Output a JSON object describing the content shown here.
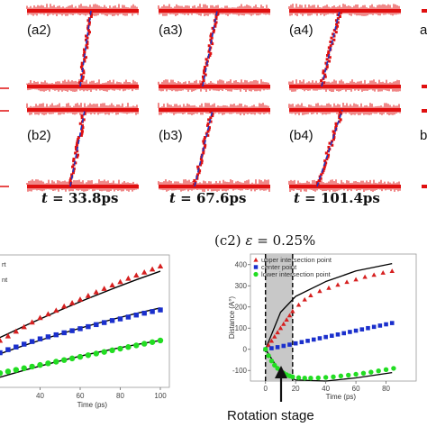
{
  "snapshots": {
    "row_a_labels": [
      "(a2)",
      "(a3)",
      "(a4)"
    ],
    "row_b_labels": [
      "(b2)",
      "(b3)",
      "(b4)"
    ],
    "time_labels": [
      {
        "symbol": "t",
        "eq": " = ",
        "value": "33.8ps"
      },
      {
        "symbol": "t",
        "eq": " = ",
        "value": "67.6ps"
      },
      {
        "symbol": "t",
        "eq": " = ",
        "value": "101.4ps"
      }
    ],
    "edge_fragments": [
      "a",
      "b"
    ],
    "colors": {
      "atoms": "#e01010",
      "fit_line": "#2233bb"
    }
  },
  "chart_data": [
    {
      "type": "scatter",
      "title": "",
      "xlabel": "Time (ps)",
      "ylabel": "",
      "xlim": [
        20,
        100
      ],
      "ylim": [
        -150,
        500
      ],
      "xticks": [
        40,
        60,
        80,
        100
      ],
      "legend_fragments": [
        "rt",
        "nt"
      ],
      "series": [
        {
          "marker": "triangle",
          "color": "#d62020",
          "x": [
            20,
            24,
            28,
            32,
            36,
            40,
            44,
            48,
            52,
            56,
            60,
            64,
            68,
            72,
            76,
            80,
            84,
            88,
            92,
            96,
            100
          ],
          "y": [
            80,
            102,
            125,
            147,
            170,
            192,
            210,
            228,
            248,
            265,
            282,
            300,
            318,
            335,
            352,
            368,
            385,
            400,
            415,
            430,
            445
          ],
          "fit": [
            95,
            420
          ]
        },
        {
          "marker": "square",
          "color": "#1a2fcc",
          "x": [
            20,
            24,
            28,
            32,
            36,
            40,
            44,
            48,
            52,
            56,
            60,
            64,
            68,
            72,
            76,
            80,
            84,
            88,
            92,
            96,
            100
          ],
          "y": [
            20,
            35,
            48,
            62,
            75,
            88,
            98,
            108,
            118,
            128,
            138,
            148,
            158,
            168,
            178,
            186,
            195,
            205,
            214,
            222,
            230
          ],
          "fit": [
            15,
            240
          ]
        },
        {
          "marker": "circle",
          "color": "#22dd22",
          "x": [
            20,
            24,
            28,
            32,
            36,
            40,
            44,
            48,
            52,
            56,
            60,
            64,
            68,
            72,
            76,
            80,
            84,
            88,
            92,
            96,
            100
          ],
          "y": [
            -80,
            -72,
            -64,
            -56,
            -48,
            -40,
            -32,
            -24,
            -16,
            -8,
            0,
            8,
            16,
            24,
            32,
            40,
            48,
            56,
            64,
            72,
            80
          ],
          "fit": [
            -100,
            80
          ]
        }
      ]
    },
    {
      "type": "scatter",
      "title_prefix": "(c2) ",
      "title_symbol": "ε",
      "title_value": " = 0.25%",
      "xlabel": "Time (ps)",
      "ylabel": "Distance (A°)",
      "xlim": [
        -10,
        100
      ],
      "ylim": [
        -150,
        450
      ],
      "xticks": [
        0,
        20,
        40,
        60,
        80
      ],
      "yticks": [
        -100,
        0,
        100,
        200,
        300,
        400
      ],
      "shaded_region": [
        0,
        18
      ],
      "legend": [
        "upper intersection point",
        "center point",
        "lower intersection point"
      ],
      "annotation": "Rotation stage",
      "series": [
        {
          "name": "upper intersection point",
          "marker": "triangle",
          "color": "#d62020",
          "x": [
            0,
            2,
            4,
            6,
            8,
            10,
            12,
            14,
            16,
            18,
            22,
            26,
            30,
            36,
            42,
            48,
            54,
            60,
            66,
            72,
            78,
            84
          ],
          "y": [
            0,
            20,
            40,
            60,
            80,
            100,
            120,
            140,
            160,
            180,
            210,
            235,
            255,
            275,
            290,
            305,
            318,
            330,
            342,
            352,
            362,
            370
          ]
        },
        {
          "name": "center point",
          "marker": "square",
          "color": "#1a2fcc",
          "x": [
            0,
            4,
            8,
            12,
            16,
            20,
            24,
            28,
            32,
            36,
            40,
            44,
            48,
            52,
            56,
            60,
            64,
            68,
            72,
            76,
            80,
            84
          ],
          "y": [
            0,
            5,
            10,
            16,
            22,
            28,
            34,
            40,
            46,
            52,
            58,
            64,
            70,
            76,
            82,
            88,
            94,
            100,
            106,
            112,
            118,
            124
          ]
        },
        {
          "name": "lower intersection point",
          "marker": "circle",
          "color": "#22dd22",
          "x": [
            0,
            2,
            4,
            6,
            8,
            10,
            12,
            14,
            16,
            18,
            22,
            26,
            30,
            35,
            40,
            45,
            50,
            55,
            60,
            65,
            70,
            75,
            80,
            85
          ],
          "y": [
            0,
            -30,
            -55,
            -75,
            -90,
            -102,
            -112,
            -120,
            -126,
            -130,
            -134,
            -136,
            -136,
            -135,
            -133,
            -130,
            -126,
            -122,
            -118,
            -113,
            -108,
            -102,
            -96,
            -90
          ]
        }
      ],
      "fits": [
        {
          "x": [
            0,
            10,
            20,
            40,
            60,
            84
          ],
          "y": [
            0,
            175,
            250,
            320,
            370,
            405
          ]
        },
        {
          "x": [
            0,
            10,
            20,
            40,
            60,
            84
          ],
          "y": [
            0,
            -110,
            -145,
            -150,
            -135,
            -110
          ]
        }
      ]
    }
  ]
}
